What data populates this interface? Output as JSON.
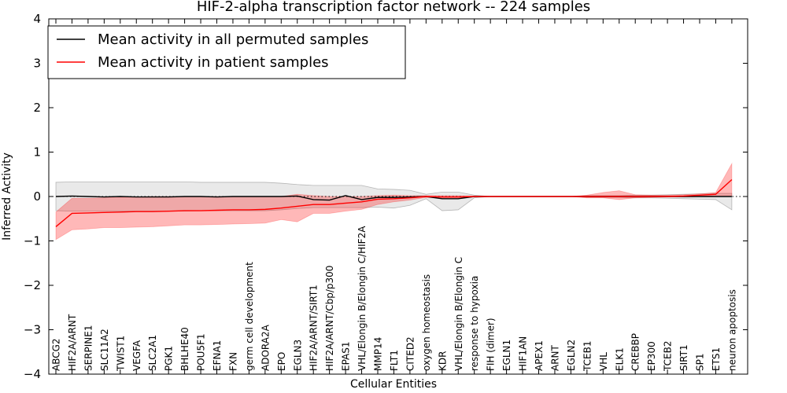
{
  "chart_data": {
    "type": "line",
    "title": "HIF-2-alpha transcription factor network -- 224 samples",
    "xlabel": "Cellular Entities",
    "ylabel": "Inferred Activity",
    "ylim": [
      -4,
      4
    ],
    "yticks": [
      -4,
      -3,
      -2,
      -1,
      0,
      1,
      2,
      3,
      4
    ],
    "ytick_labels": [
      "−4",
      "−3",
      "−2",
      "−1",
      "0",
      "1",
      "2",
      "3",
      "4"
    ],
    "legend_position": "upper-left",
    "categories": [
      "ABCG2",
      "HIF2A/ARNT",
      "SERPINE1",
      "SLC11A2",
      "TWIST1",
      "VEGFA",
      "SLC2A1",
      "PGK1",
      "BHLHE40",
      "POU5F1",
      "EFNA1",
      "FXN",
      "germ cell development",
      "ADORA2A",
      "EPO",
      "EGLN3",
      "HIF2A/ARNT/SIRT1",
      "HIF2A/ARNT/Cbp/p300",
      "EPAS1",
      "VHL/Elongin B/Elongin C/HIF2A",
      "MMP14",
      "FLT1",
      "CITED2",
      "oxygen homeostasis",
      "KDR",
      "VHL/Elongin B/Elongin C",
      "response to hypoxia",
      "FIH (dimer)",
      "EGLN1",
      "HIF1AN",
      "APEX1",
      "ARNT",
      "EGLN2",
      "TCEB1",
      "VHL",
      "ELK1",
      "CREBBP",
      "EP300",
      "TCEB2",
      "SIRT1",
      "SP1",
      "ETS1",
      "neuron apoptosis"
    ],
    "series": [
      {
        "name": "Mean activity in all permuted samples",
        "color": "#000000",
        "values": [
          0,
          0.01,
          0,
          -0.01,
          0,
          -0.01,
          -0.01,
          -0.01,
          0,
          0,
          -0.01,
          0,
          0,
          0,
          0,
          0.01,
          -0.07,
          -0.08,
          0.02,
          -0.07,
          -0.02,
          -0.02,
          -0.01,
          0,
          -0.05,
          -0.05,
          0,
          0,
          0,
          0,
          0,
          0,
          0,
          0,
          0,
          0,
          0,
          0,
          0,
          0,
          0,
          0,
          0
        ],
        "band_lower": [
          -0.32,
          -0.33,
          -0.33,
          -0.33,
          -0.33,
          -0.33,
          -0.33,
          -0.33,
          -0.33,
          -0.32,
          -0.32,
          -0.32,
          -0.32,
          -0.32,
          -0.3,
          -0.27,
          -0.25,
          -0.25,
          -0.25,
          -0.25,
          -0.24,
          -0.26,
          -0.2,
          -0.05,
          -0.32,
          -0.3,
          -0.03,
          0,
          0,
          0,
          0,
          0,
          0,
          -0.02,
          -0.02,
          -0.02,
          -0.03,
          -0.03,
          -0.04,
          -0.05,
          -0.06,
          -0.07,
          -0.3
        ],
        "band_upper": [
          0.32,
          0.33,
          0.33,
          0.33,
          0.33,
          0.33,
          0.33,
          0.33,
          0.33,
          0.32,
          0.32,
          0.32,
          0.32,
          0.32,
          0.3,
          0.27,
          0.25,
          0.25,
          0.25,
          0.25,
          0.17,
          0.16,
          0.14,
          0.05,
          0.1,
          0.1,
          0.03,
          0,
          0,
          0,
          0,
          0,
          0,
          0.02,
          0.02,
          0.02,
          0.03,
          0.03,
          0.04,
          0.05,
          0.06,
          0.07,
          0.07
        ]
      },
      {
        "name": "Mean activity in patient samples",
        "color": "#ff0000",
        "values": [
          -0.68,
          -0.38,
          -0.37,
          -0.36,
          -0.35,
          -0.34,
          -0.34,
          -0.33,
          -0.32,
          -0.32,
          -0.31,
          -0.3,
          -0.3,
          -0.29,
          -0.26,
          -0.22,
          -0.18,
          -0.18,
          -0.15,
          -0.12,
          -0.06,
          -0.05,
          -0.03,
          0,
          -0.01,
          -0.01,
          0,
          0,
          0,
          0,
          0,
          0,
          0,
          0,
          0,
          0,
          0,
          0,
          0,
          0.01,
          0.03,
          0.05,
          0.38
        ],
        "band_lower": [
          -0.97,
          -0.75,
          -0.73,
          -0.7,
          -0.7,
          -0.69,
          -0.68,
          -0.66,
          -0.64,
          -0.64,
          -0.63,
          -0.62,
          -0.61,
          -0.6,
          -0.52,
          -0.57,
          -0.38,
          -0.38,
          -0.33,
          -0.29,
          -0.18,
          -0.12,
          -0.08,
          -0.02,
          -0.03,
          -0.03,
          -0.01,
          0,
          0,
          0,
          0,
          0,
          0,
          -0.03,
          -0.03,
          -0.07,
          -0.03,
          -0.02,
          -0.01,
          -0.01,
          0,
          0.02,
          0.02
        ],
        "band_upper": [
          -0.35,
          -0.04,
          -0.04,
          -0.03,
          -0.02,
          -0.01,
          0,
          0,
          0,
          0,
          0,
          0,
          0,
          0,
          0,
          0.05,
          0.02,
          0,
          0,
          0,
          0.02,
          0.03,
          0.02,
          0.02,
          0.02,
          0.02,
          0.01,
          0,
          0,
          0,
          0,
          0,
          0,
          0.03,
          0.09,
          0.13,
          0.04,
          0.03,
          0.03,
          0.04,
          0.06,
          0.09,
          0.74
        ]
      }
    ]
  }
}
